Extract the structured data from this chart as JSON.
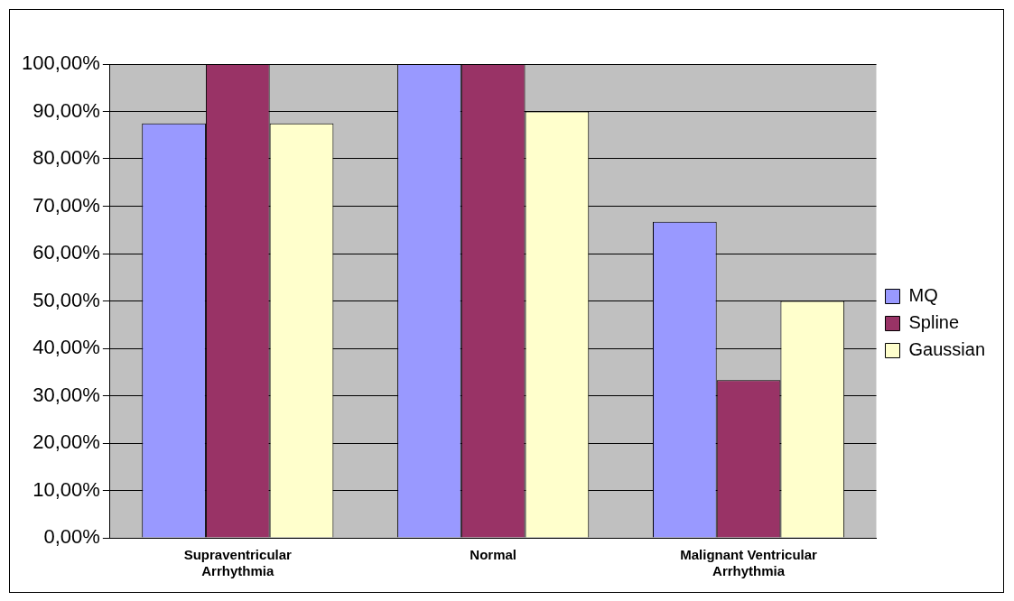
{
  "chart_data": {
    "type": "bar",
    "categories": [
      "Supraventricular Arrhythmia",
      "Normal",
      "Malignant Ventricular Arrhythmia"
    ],
    "series": [
      {
        "name": "MQ",
        "color": "#9999ff",
        "values": [
          87.5,
          100,
          66.7
        ]
      },
      {
        "name": "Spline",
        "color": "#993366",
        "values": [
          100,
          100,
          33.3
        ]
      },
      {
        "name": "Gaussian",
        "color": "#ffffcc",
        "values": [
          87.5,
          90,
          50
        ]
      }
    ],
    "ylim": [
      0,
      100
    ],
    "yticks": [
      {
        "value": 0,
        "label": "0,00%"
      },
      {
        "value": 10,
        "label": "10,00%"
      },
      {
        "value": 20,
        "label": "20,00%"
      },
      {
        "value": 30,
        "label": "30,00%"
      },
      {
        "value": 40,
        "label": "40,00%"
      },
      {
        "value": 50,
        "label": "50,00%"
      },
      {
        "value": 60,
        "label": "60,00%"
      },
      {
        "value": 70,
        "label": "70,00%"
      },
      {
        "value": 80,
        "label": "80,00%"
      },
      {
        "value": 90,
        "label": "90,00%"
      },
      {
        "value": 100,
        "label": "100,00%"
      }
    ],
    "grid": "y",
    "legend": "right"
  }
}
